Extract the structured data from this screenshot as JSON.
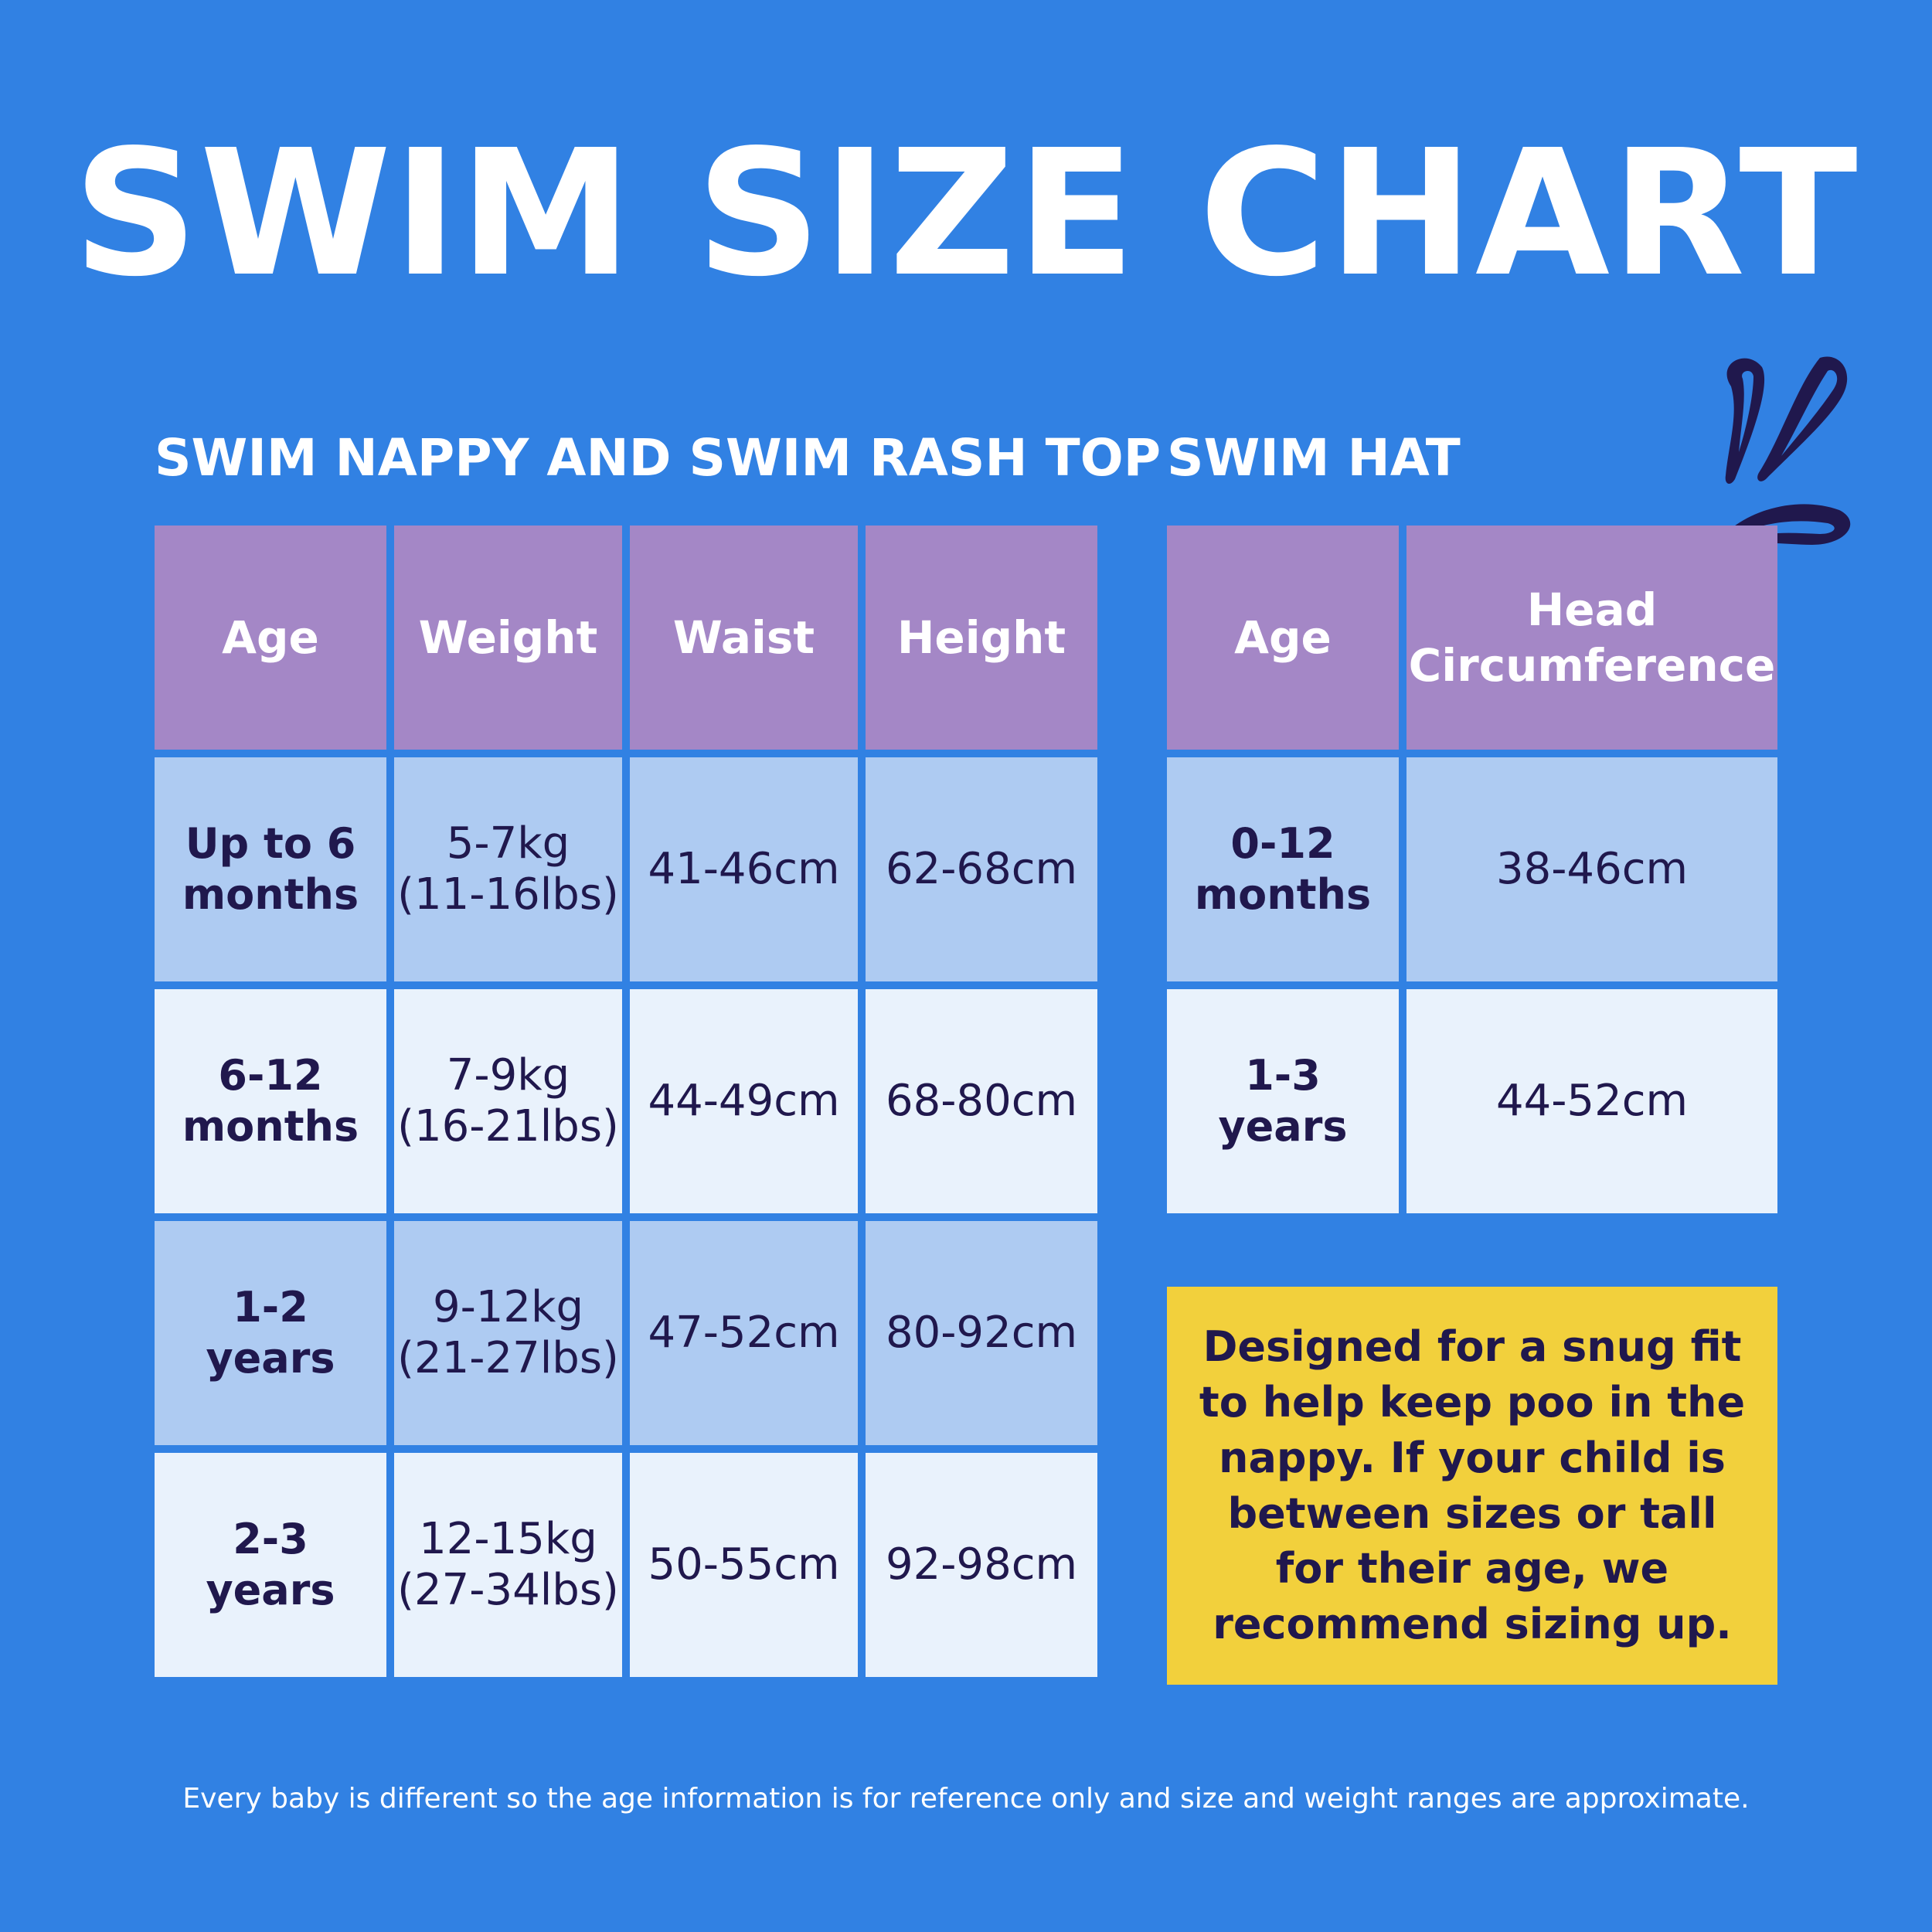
{
  "title": "SWIM SIZE CHART",
  "nappy_table": {
    "title": "SWIM NAPPY AND SWIM RASH TOP",
    "headers": [
      "Age",
      "Weight",
      "Waist",
      "Height"
    ],
    "rows": [
      {
        "age": "Up to 6\nmonths",
        "weight": "5-7kg\n(11-16lbs)",
        "waist": "41-46cm",
        "height": "62-68cm"
      },
      {
        "age": "6-12\nmonths",
        "weight": "7-9kg\n(16-21lbs)",
        "waist": "44-49cm",
        "height": "68-80cm"
      },
      {
        "age": "1-2\nyears",
        "weight": "9-12kg\n(21-27lbs)",
        "waist": "47-52cm",
        "height": "80-92cm"
      },
      {
        "age": "2-3\nyears",
        "weight": "12-15kg\n(27-34lbs)",
        "waist": "50-55cm",
        "height": "92-98cm"
      }
    ]
  },
  "hat_table": {
    "title": "SWIM HAT",
    "headers": [
      "Age",
      "Head\nCircumference"
    ],
    "rows": [
      {
        "age": "0-12\nmonths",
        "head": "38-46cm"
      },
      {
        "age": "1-3\nyears",
        "head": "44-52cm"
      }
    ]
  },
  "note": "Designed for a snug fit to help keep poo in the nappy. If your child is between sizes or tall for their age, we recommend sizing up.",
  "footer": "Every baby is different so the age information is for reference only and size and weight ranges are approximate.",
  "colors": {
    "background": "#3181e3",
    "header": "#a487c6",
    "row_dark": "#aecbf2",
    "row_light": "#e9f2fc",
    "note": "#f2d03c",
    "text_dark": "#20184d"
  },
  "icons": [
    "splash-icon"
  ]
}
